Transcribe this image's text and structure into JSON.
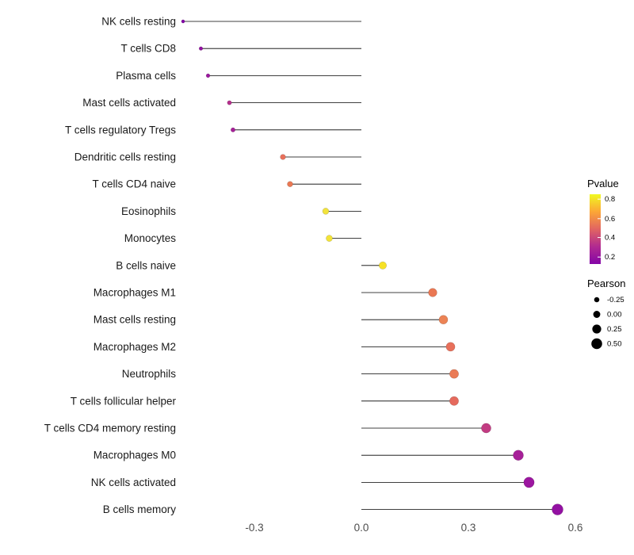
{
  "chart_data": {
    "type": "scatter",
    "subtype": "lollipop",
    "title": "",
    "xlabel": "",
    "ylabel": "",
    "xlim": [
      -0.52,
      0.64
    ],
    "grid": false,
    "x_ticks": [
      -0.3,
      0.0,
      0.3,
      0.6
    ],
    "x_tick_labels": [
      "-0.3",
      "0.0",
      "0.3",
      "0.6"
    ],
    "points": [
      {
        "label": "NK cells resting",
        "pearson": -0.5,
        "pvalue": 0.15,
        "color": "#8405A8"
      },
      {
        "label": "T cells CD8",
        "pearson": -0.45,
        "pvalue": 0.18,
        "color": "#9311A2"
      },
      {
        "label": "Plasma cells",
        "pearson": -0.43,
        "pvalue": 0.2,
        "color": "#9B179E"
      },
      {
        "label": "Mast cells activated",
        "pearson": -0.37,
        "pvalue": 0.3,
        "color": "#B52F8C"
      },
      {
        "label": "T cells regulatory  Tregs",
        "pearson": -0.36,
        "pvalue": 0.25,
        "color": "#A62098"
      },
      {
        "label": "Dendritic cells resting",
        "pearson": -0.22,
        "pvalue": 0.55,
        "color": "#E8705B"
      },
      {
        "label": "T cells CD4 naive",
        "pearson": -0.2,
        "pvalue": 0.55,
        "color": "#EA7853"
      },
      {
        "label": "Eosinophils",
        "pearson": -0.1,
        "pvalue": 0.8,
        "color": "#F2E33C"
      },
      {
        "label": "Monocytes",
        "pearson": -0.09,
        "pvalue": 0.8,
        "color": "#F3E338"
      },
      {
        "label": "B cells naive",
        "pearson": 0.06,
        "pvalue": 0.85,
        "color": "#F6E126"
      },
      {
        "label": "Macrophages M1",
        "pearson": 0.2,
        "pvalue": 0.55,
        "color": "#EA7853"
      },
      {
        "label": "Mast cells resting",
        "pearson": 0.23,
        "pvalue": 0.6,
        "color": "#EC8355"
      },
      {
        "label": "Macrophages M2",
        "pearson": 0.25,
        "pvalue": 0.55,
        "color": "#E8705B"
      },
      {
        "label": "Neutrophils",
        "pearson": 0.26,
        "pvalue": 0.55,
        "color": "#EA7B56"
      },
      {
        "label": "T cells follicular helper",
        "pearson": 0.26,
        "pvalue": 0.5,
        "color": "#E56A5D"
      },
      {
        "label": "T cells CD4 memory resting",
        "pearson": 0.35,
        "pvalue": 0.3,
        "color": "#C23C82"
      },
      {
        "label": "Macrophages M0",
        "pearson": 0.44,
        "pvalue": 0.2,
        "color": "#A62098"
      },
      {
        "label": "NK cells activated",
        "pearson": 0.47,
        "pvalue": 0.18,
        "color": "#9C17A0"
      },
      {
        "label": "B cells memory",
        "pearson": 0.55,
        "pvalue": 0.15,
        "color": "#9311A2"
      }
    ],
    "legend_pvalue": {
      "title": "Pvalue",
      "ticks": [
        "0.8",
        "0.6",
        "0.4",
        "0.2"
      ],
      "gradient": [
        "#F0F921",
        "#FCA636",
        "#E16462",
        "#B12A90",
        "#8405A7"
      ]
    },
    "legend_pearson": {
      "title": "Pearson",
      "entries": [
        {
          "label": "-0.25",
          "value": -0.25
        },
        {
          "label": "0.00",
          "value": 0.0
        },
        {
          "label": "0.25",
          "value": 0.25
        },
        {
          "label": "0.50",
          "value": 0.5
        }
      ],
      "dot_color": "#000000"
    }
  }
}
